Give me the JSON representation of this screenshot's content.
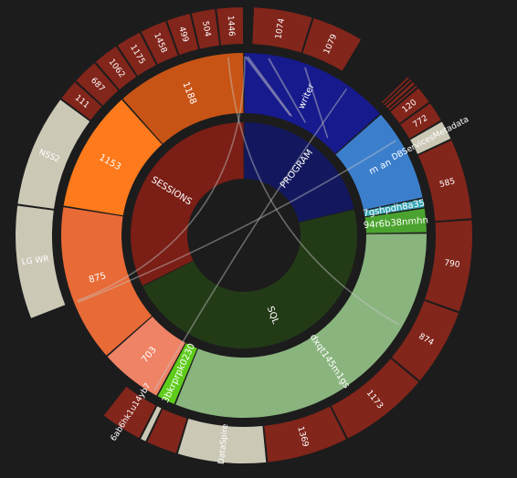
{
  "chart_data": {
    "type": "sunburst",
    "inner": [
      {
        "label": "PROGRAM",
        "value": 11.5,
        "color": "#13185e"
      },
      {
        "label": "SQL",
        "value": 25,
        "color": "#233a17"
      },
      {
        "label": "SESSIONS",
        "value": 17.5,
        "color": "#7a1e16"
      }
    ],
    "middle": [
      {
        "label": "writer",
        "value": 11,
        "color": "#161a8c",
        "lc": "#ffffff"
      },
      {
        "label": "m an",
        "value": 6.8,
        "color": "#3b7fcc",
        "lc": "#ffffff"
      },
      {
        "label": "7gshpdh8a35",
        "value": 0.7,
        "color": "#3aa6b6",
        "lc": "#ffffff"
      },
      {
        "label": "94r6b38nmhn",
        "value": 1.8,
        "color": "#4ba32f",
        "lc": "#ffffff"
      },
      {
        "label": "dxqt145m1gs",
        "value": 25.7,
        "color": "#8ab47e",
        "lc": "#ffffff"
      },
      {
        "label": "3bkrprpk0230",
        "value": 1.4,
        "color": "#5fcc1c",
        "lc": "#ffffff"
      },
      {
        "label": "703",
        "value": 4.6,
        "color": "#ef8366",
        "lc": "#ffffff"
      },
      {
        "label": "875",
        "value": 11.5,
        "color": "#e86a36",
        "lc": "#ffffff"
      },
      {
        "label": "1153",
        "value": 8.9,
        "color": "#ff7a1c",
        "lc": "#ffffff"
      },
      {
        "label": "1188",
        "value": 9.5,
        "color": "#c75415",
        "lc": "#ffffff"
      }
    ],
    "outer": [
      {
        "label": "",
        "value": 1,
        "color": "#1c1c1c"
      },
      {
        "label": "1074",
        "value": 6.7,
        "color": "#82251b"
      },
      {
        "label": "1079",
        "value": 5.9,
        "color": "#82251b"
      },
      {
        "label": "",
        "value": 6.4,
        "color": "#1c1c1c"
      },
      {
        "label": "",
        "value": 0.4,
        "color": "#82251b"
      },
      {
        "label": "",
        "value": 0.4,
        "color": "#82251b"
      },
      {
        "label": "",
        "value": 0.5,
        "color": "#82251b"
      },
      {
        "label": "",
        "value": 0.4,
        "color": "#82251b"
      },
      {
        "label": "120",
        "value": 2.1,
        "color": "#82251b"
      },
      {
        "label": "772",
        "value": 2.4,
        "color": "#82251b"
      },
      {
        "label": "DBServicesMetadata",
        "value": 2.3,
        "color": "#cbc8b6",
        "lc": "#ffffff"
      },
      {
        "label": "585",
        "value": 9.1,
        "color": "#82251b"
      },
      {
        "label": "790",
        "value": 10.4,
        "color": "#82251b"
      },
      {
        "label": "874",
        "value": 8.8,
        "color": "#82251b"
      },
      {
        "label": "1173",
        "value": 10.2,
        "color": "#82251b"
      },
      {
        "label": "1369",
        "value": 9.2,
        "color": "#82251b"
      },
      {
        "label": "DataSpire",
        "value": 10,
        "color": "#cbc8b6",
        "lc": "#ffffff"
      },
      {
        "label": "",
        "value": 3.6,
        "color": "#82251b"
      },
      {
        "label": "",
        "value": 0.8,
        "color": "#cbc8b6"
      },
      {
        "label": "6ab6hk1u14yb7",
        "value": 4.8,
        "color": "#82251b"
      },
      {
        "label": "",
        "value": 13.3,
        "color": "#1c1c1c"
      },
      {
        "label": "LG WR",
        "value": 12.8,
        "color": "#cbc8b6",
        "lc": "#ffffff"
      },
      {
        "label": "NSS2",
        "value": 12.7,
        "color": "#cbc8b6",
        "lc": "#ffffff"
      },
      {
        "label": "111",
        "value": 2.5,
        "color": "#82251b"
      },
      {
        "label": "687",
        "value": 3.0,
        "color": "#82251b"
      },
      {
        "label": "1062",
        "value": 3.0,
        "color": "#82251b"
      },
      {
        "label": "1175",
        "value": 3.0,
        "color": "#82251b"
      },
      {
        "label": "1458",
        "value": 3.1,
        "color": "#82251b"
      },
      {
        "label": "499",
        "value": 2.8,
        "color": "#82251b"
      },
      {
        "label": "504",
        "value": 2.8,
        "color": "#82251b"
      },
      {
        "label": "1446",
        "value": 3.1,
        "color": "#82251b"
      }
    ],
    "links": [
      {
        "from": 0.3,
        "to": 248.5
      },
      {
        "from": 0.6,
        "to": 0.6
      },
      {
        "from": 1.3,
        "to": 1.3
      },
      {
        "from": 35,
        "to": 210
      },
      {
        "from": 58,
        "to": 248
      },
      {
        "from": 355,
        "to": 120
      },
      {
        "from": 20,
        "to": 20
      },
      {
        "from": 8,
        "to": 8
      }
    ]
  }
}
